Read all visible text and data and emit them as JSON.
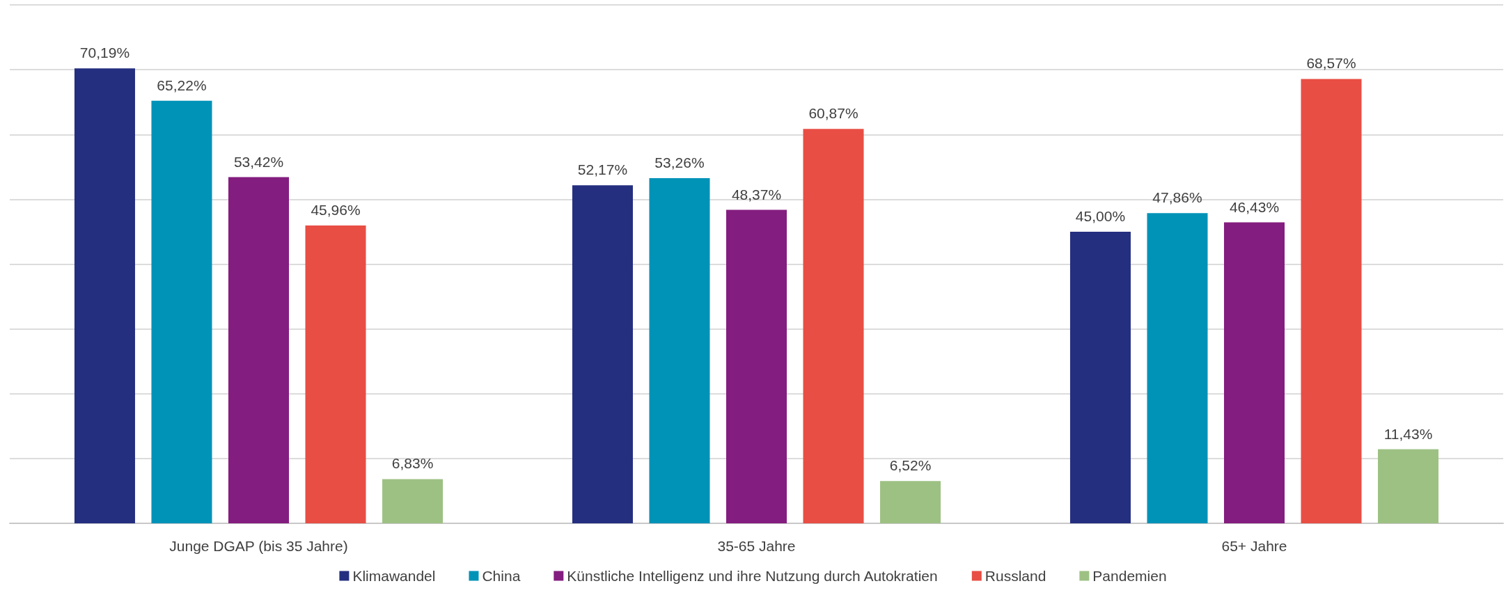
{
  "chart_data": {
    "type": "bar",
    "categories": [
      "Junge DGAP (bis 35 Jahre)",
      "35-65 Jahre",
      "65+ Jahre"
    ],
    "series": [
      {
        "name": "Klimawandel",
        "color": "#252f80",
        "values": [
          70.19,
          52.17,
          45.0
        ],
        "value_labels": [
          "70,19%",
          "52,17%",
          "45,00%"
        ]
      },
      {
        "name": "China",
        "color": "#0093b8",
        "values": [
          65.22,
          53.26,
          47.86
        ],
        "value_labels": [
          "65,22%",
          "53,26%",
          "47,86%"
        ]
      },
      {
        "name": "Künstliche Intelligenz und ihre Nutzung durch Autokratien",
        "color": "#841d80",
        "values": [
          53.42,
          48.37,
          46.43
        ],
        "value_labels": [
          "53,42%",
          "48,37%",
          "46,43%"
        ]
      },
      {
        "name": "Russland",
        "color": "#e84e44",
        "values": [
          45.96,
          60.87,
          68.57
        ],
        "value_labels": [
          "45,96%",
          "60,87%",
          "68,57%"
        ]
      },
      {
        "name": "Pandemien",
        "color": "#9dc183",
        "values": [
          6.83,
          6.52,
          11.43
        ],
        "value_labels": [
          "6,83%",
          "6,52%",
          "11,43%"
        ]
      }
    ],
    "ylim": [
      0,
      80
    ],
    "yticks": [
      {
        "value": 0,
        "label": null
      },
      {
        "value": 10,
        "label": null
      },
      {
        "value": 20,
        "label": null
      },
      {
        "value": 30,
        "label": null
      },
      {
        "value": 40,
        "label": null
      },
      {
        "value": 50,
        "label": null
      },
      {
        "value": 60,
        "label": null
      },
      {
        "value": 70,
        "label": null
      },
      {
        "value": 80,
        "label": null
      }
    ],
    "tick_labels": "x",
    "grid": "y",
    "legend": "bottom"
  }
}
